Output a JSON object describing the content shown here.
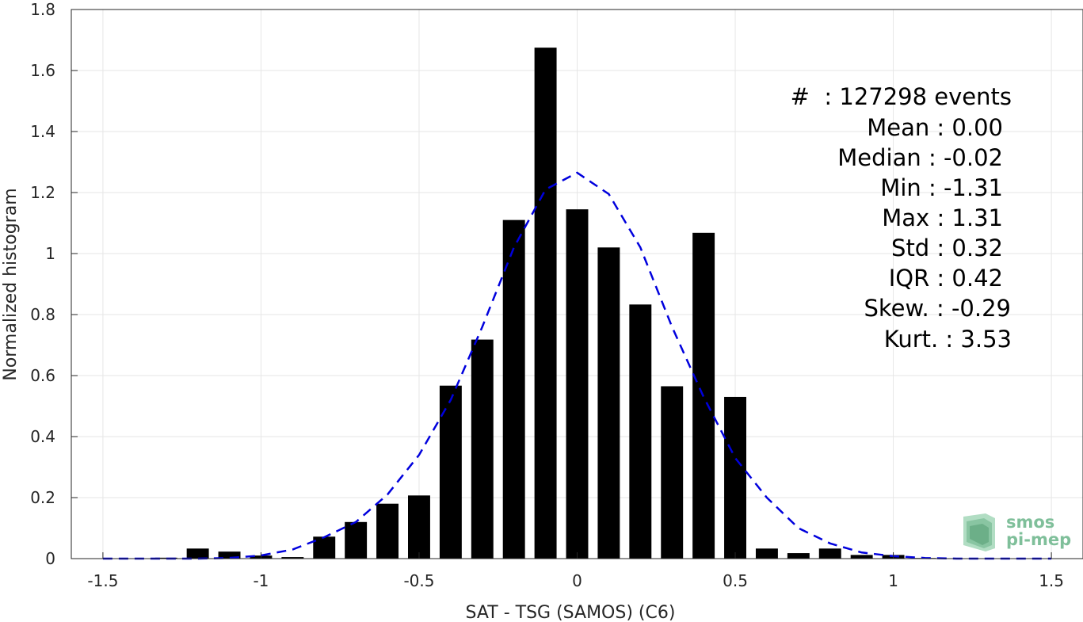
{
  "chart_data": {
    "type": "bar",
    "xlabel": "SAT - TSG (SAMOS) (C6)",
    "ylabel": "Normalized histogram",
    "xlim": [
      -1.6,
      1.6
    ],
    "ylim": [
      0,
      1.8
    ],
    "xticks": [
      -1.5,
      -1,
      -0.5,
      0,
      0.5,
      1,
      1.5
    ],
    "xtick_labels": [
      "-1.5",
      "-1",
      "-0.5",
      "0",
      "0.5",
      "1",
      "1.5"
    ],
    "yticks": [
      0,
      0.2,
      0.4,
      0.6,
      0.8,
      1,
      1.2,
      1.4,
      1.6,
      1.8
    ],
    "ytick_labels": [
      "0",
      "0.2",
      "0.4",
      "0.6",
      "0.8",
      "1",
      "1.2",
      "1.4",
      "1.6",
      "1.8"
    ],
    "grid": true,
    "bar_width": 0.07,
    "bar_color": "#000000",
    "bars": {
      "x": [
        -1.4,
        -1.3,
        -1.2,
        -1.1,
        -1.0,
        -0.9,
        -0.8,
        -0.7,
        -0.6,
        -0.5,
        -0.4,
        -0.3,
        -0.2,
        -0.1,
        0.0,
        0.1,
        0.2,
        0.3,
        0.4,
        0.5,
        0.6,
        0.7,
        0.8,
        0.9,
        1.0,
        1.1,
        1.2,
        1.3
      ],
      "values": [
        0.001,
        0.003,
        0.033,
        0.023,
        0.01,
        0.005,
        0.072,
        0.12,
        0.18,
        0.207,
        0.567,
        0.718,
        1.11,
        1.675,
        1.145,
        1.02,
        0.833,
        0.565,
        1.068,
        0.53,
        0.033,
        0.018,
        0.033,
        0.012,
        0.012,
        0.002,
        0.001,
        0.001
      ]
    },
    "fit_curve": {
      "name": "normal fit",
      "color": "#0000dd",
      "style": "dashed",
      "x": [
        -1.5,
        -1.4,
        -1.3,
        -1.2,
        -1.1,
        -1.0,
        -0.9,
        -0.8,
        -0.7,
        -0.6,
        -0.5,
        -0.4,
        -0.3,
        -0.2,
        -0.1,
        0.0,
        0.1,
        0.2,
        0.3,
        0.4,
        0.5,
        0.6,
        0.7,
        0.8,
        0.9,
        1.0,
        1.1,
        1.2,
        1.3,
        1.4,
        1.5
      ],
      "y": [
        0.0,
        0.0,
        0.0,
        0.0,
        0.002,
        0.01,
        0.03,
        0.07,
        0.12,
        0.21,
        0.34,
        0.52,
        0.76,
        1.02,
        1.21,
        1.265,
        1.195,
        1.02,
        0.76,
        0.53,
        0.33,
        0.2,
        0.1,
        0.05,
        0.02,
        0.008,
        0.002,
        0.0,
        0.0,
        0.0,
        0.0
      ]
    }
  },
  "stats": [
    {
      "label": "#  : 127298 events"
    },
    {
      "label": "Mean : 0.00"
    },
    {
      "label": "Median : -0.02"
    },
    {
      "label": "Min : -1.31"
    },
    {
      "label": "Max : 1.31"
    },
    {
      "label": "Std : 0.32"
    },
    {
      "label": "IQR : 0.42"
    },
    {
      "label": "Skew. : -0.29"
    },
    {
      "label": "Kurt. : 3.53"
    }
  ],
  "logo": {
    "line1": "smos",
    "line2": "pi-mep"
  }
}
